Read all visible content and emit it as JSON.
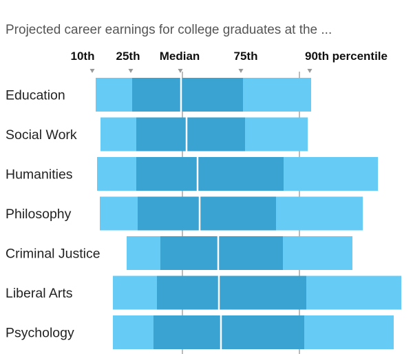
{
  "chart_data": {
    "type": "bar",
    "subtype": "percentile-range",
    "title": "Projected career earnings for college graduates at the ...",
    "percentile_labels": [
      "10th",
      "25th",
      "Median",
      "75th",
      "90th percentile"
    ],
    "categories": [
      "Education",
      "Social Work",
      "Humanities",
      "Philosophy",
      "Criminal Justice",
      "Liberal Arts",
      "Psychology"
    ],
    "series": [
      {
        "name": "10th",
        "values": [
          0.74,
          0.81,
          0.76,
          0.8,
          1.19,
          0.99,
          0.99
        ]
      },
      {
        "name": "25th",
        "values": [
          1.27,
          1.33,
          1.33,
          1.35,
          1.68,
          1.63,
          1.58
        ]
      },
      {
        "name": "Median",
        "values": [
          1.98,
          2.06,
          2.22,
          2.25,
          2.52,
          2.53,
          2.56
        ]
      },
      {
        "name": "75th",
        "values": [
          2.88,
          2.91,
          3.47,
          3.36,
          3.46,
          3.8,
          3.77
        ]
      },
      {
        "name": "90th percentile",
        "values": [
          3.87,
          3.82,
          4.84,
          4.62,
          4.47,
          5.18,
          5.07
        ]
      }
    ],
    "reference_lines": [
      2.0,
      3.7
    ],
    "xlim": [
      -0.65,
      5.35
    ],
    "colors": {
      "outer": "#67ccf5",
      "inner": "#3aa3d2",
      "median_line": "#ffffff",
      "grid": "#777777",
      "marker": "#999999"
    }
  }
}
